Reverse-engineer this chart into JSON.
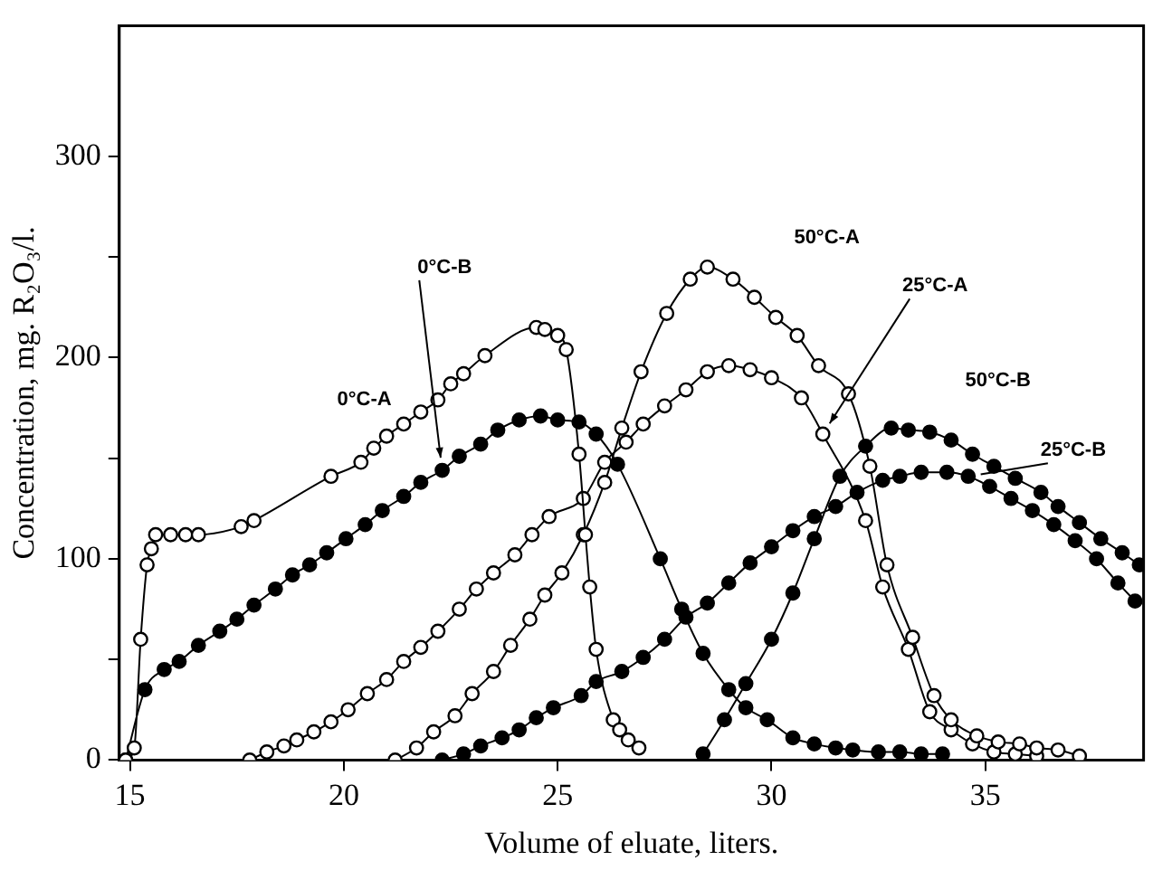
{
  "chart_data": {
    "type": "line",
    "xlabel": "Volume of eluate, liters.",
    "ylabel": "Concentration, mg. R₂O₃/l.",
    "marker": "circle",
    "line_style": "solid",
    "xlim": [
      14.75,
      38.7
    ],
    "ylim": [
      0,
      365
    ],
    "xticks": [
      15,
      20,
      25,
      30,
      35
    ],
    "yticks": [
      0,
      {
        "value": 50,
        "label": null
      },
      100,
      {
        "value": 150,
        "label": null
      },
      200,
      {
        "value": 250,
        "label": null
      },
      300
    ],
    "series": [
      {
        "name": "0°C-A",
        "color": "#ffffff",
        "x": [
          14.9,
          15.1,
          15.25,
          15.4,
          15.5,
          15.6,
          15.95,
          16.3,
          16.6,
          17.6,
          17.9,
          19.7,
          20.4,
          20.7,
          21.0,
          21.4,
          21.8,
          22.2,
          22.5,
          22.8,
          23.3,
          24.5,
          24.7,
          25.0,
          25.2,
          25.5,
          25.65,
          25.75,
          25.9,
          26.3,
          26.45,
          26.65,
          26.9
        ],
        "values": [
          0,
          6,
          60,
          97,
          105,
          112,
          112,
          112,
          112,
          116,
          119,
          141,
          148,
          155,
          161,
          167,
          173,
          179,
          187,
          192,
          201,
          215,
          214,
          211,
          204,
          152,
          112,
          86,
          55,
          20,
          15,
          10,
          6
        ]
      },
      {
        "name": "0°C-B",
        "color": "#000000",
        "x": [
          14.9,
          15.35,
          15.8,
          16.15,
          16.6,
          17.1,
          17.5,
          17.9,
          18.4,
          18.8,
          19.2,
          19.6,
          20.05,
          20.5,
          20.9,
          21.4,
          21.8,
          22.3,
          22.7,
          23.2,
          23.6,
          24.1,
          24.6,
          25.0,
          25.5,
          25.9,
          26.4,
          27.4,
          27.9,
          28.4,
          29.0,
          29.4,
          29.9,
          30.5,
          31.0,
          31.5,
          31.9,
          32.5,
          33.0,
          33.5,
          34.0
        ],
        "values": [
          0,
          35,
          45,
          49,
          57,
          64,
          70,
          77,
          85,
          92,
          97,
          103,
          110,
          117,
          124,
          131,
          138,
          144,
          151,
          157,
          164,
          169,
          171,
          169,
          168,
          162,
          147,
          100,
          75,
          53,
          35,
          26,
          20,
          11,
          8,
          6,
          5,
          4,
          4,
          3,
          3
        ]
      },
      {
        "name": "50°C-A",
        "color": "#ffffff",
        "x": [
          21.2,
          21.7,
          22.1,
          22.6,
          23.0,
          23.5,
          23.9,
          24.35,
          24.7,
          25.1,
          25.6,
          26.1,
          26.5,
          26.95,
          27.55,
          28.1,
          28.5,
          29.1,
          29.6,
          30.1,
          30.6,
          31.1,
          31.8,
          32.3,
          32.7,
          33.3,
          33.8,
          34.2,
          34.8,
          35.3,
          35.8,
          36.2,
          36.7,
          37.2
        ],
        "values": [
          0,
          6,
          14,
          22,
          33,
          44,
          57,
          70,
          82,
          93,
          112,
          138,
          165,
          193,
          222,
          239,
          245,
          239,
          230,
          220,
          211,
          196,
          182,
          146,
          97,
          61,
          32,
          20,
          12,
          9,
          8,
          6,
          5,
          2
        ]
      },
      {
        "name": "25°C-A",
        "color": "#ffffff",
        "x": [
          17.8,
          18.2,
          18.6,
          18.9,
          19.3,
          19.7,
          20.1,
          20.55,
          21.0,
          21.4,
          21.8,
          22.2,
          22.7,
          23.1,
          23.5,
          24.0,
          24.4,
          24.8,
          25.6,
          26.1,
          26.6,
          27.0,
          27.5,
          28.0,
          28.5,
          29.0,
          29.5,
          30.0,
          30.7,
          31.2,
          32.2,
          32.6,
          33.2,
          33.7,
          34.2,
          34.7,
          35.2,
          35.7,
          36.2
        ],
        "values": [
          0,
          4,
          7,
          10,
          14,
          19,
          25,
          33,
          40,
          49,
          56,
          64,
          75,
          85,
          93,
          102,
          112,
          121,
          130,
          148,
          158,
          167,
          176,
          184,
          193,
          196,
          194,
          190,
          180,
          162,
          119,
          86,
          55,
          24,
          15,
          8,
          4,
          3,
          2
        ]
      },
      {
        "name": "50°C-B",
        "color": "#000000",
        "x": [
          28.4,
          28.9,
          29.4,
          30.0,
          30.5,
          31.0,
          31.6,
          32.2,
          32.8,
          33.2,
          33.7,
          34.2,
          34.7,
          35.2,
          35.7,
          36.3,
          36.7,
          37.2,
          37.7,
          38.2,
          38.6
        ],
        "values": [
          3,
          20,
          38,
          60,
          83,
          110,
          141,
          156,
          165,
          164,
          163,
          159,
          152,
          146,
          140,
          133,
          126,
          118,
          110,
          103,
          97
        ]
      },
      {
        "name": "25°C-B",
        "color": "#000000",
        "x": [
          22.3,
          22.8,
          23.2,
          23.7,
          24.1,
          24.5,
          24.9,
          25.55,
          25.9,
          26.5,
          27.0,
          27.5,
          28.0,
          28.5,
          29.0,
          29.5,
          30.0,
          30.5,
          31.0,
          31.5,
          32.0,
          32.6,
          33.0,
          33.5,
          34.1,
          34.6,
          35.1,
          35.6,
          36.1,
          36.6,
          37.1,
          37.6,
          38.1,
          38.5
        ],
        "values": [
          0,
          3,
          7,
          11,
          15,
          21,
          26,
          32,
          39,
          44,
          51,
          60,
          71,
          78,
          88,
          98,
          106,
          114,
          121,
          126,
          133,
          139,
          141,
          143,
          143,
          141,
          136,
          130,
          124,
          117,
          109,
          100,
          88,
          79
        ]
      }
    ]
  }
}
